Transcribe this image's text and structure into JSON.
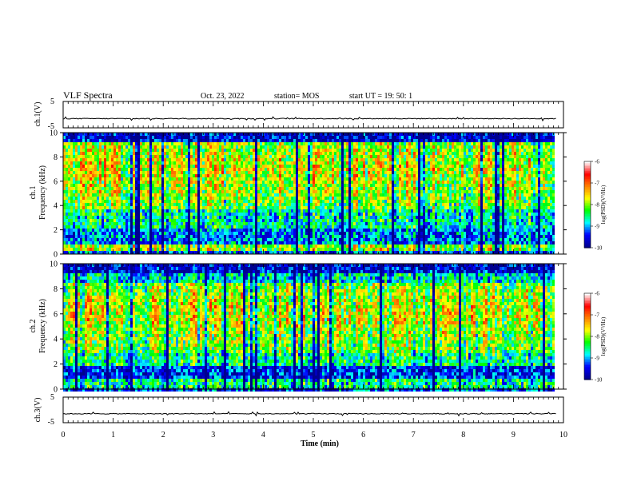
{
  "header": {
    "title": "VLF Spectra",
    "date": "Oct. 23, 2022",
    "station": "station= MOS",
    "start": "start UT =  19: 50: 1"
  },
  "chart_data": [
    {
      "type": "line",
      "panel": "ch1-waveform",
      "ylabel": "ch.1(V)",
      "ylim": [
        -5,
        5
      ],
      "yticks": [
        "5",
        "-5"
      ],
      "baseline": -1.5
    },
    {
      "type": "heatmap",
      "panel": "ch1-spectrogram",
      "ylabel": "ch.1\nFrequency (kHz)",
      "ylim": [
        0,
        10
      ],
      "yticks": [
        "0",
        "2",
        "4",
        "6",
        "8",
        "10"
      ],
      "colorbar": {
        "label": "log(PSD)(V²/Hz)",
        "ticks": [
          "-6",
          "-7",
          "-8",
          "-9",
          "-10"
        ],
        "range": [
          -10,
          -6
        ],
        "colors": [
          "#00008f",
          "#0000ff",
          "#00ffff",
          "#00ff00",
          "#ffff00",
          "#ff8000",
          "#ff0000",
          "#ffffff"
        ]
      }
    },
    {
      "type": "heatmap",
      "panel": "ch2-spectrogram",
      "ylabel": "ch.2\nFrequency (kHz)",
      "ylim": [
        0,
        10
      ],
      "yticks": [
        "0",
        "2",
        "4",
        "6",
        "8",
        "10"
      ],
      "colorbar": {
        "label": "log(PSD)(V²/Hz)",
        "ticks": [
          "-6",
          "-7",
          "-8",
          "-9",
          "-10"
        ],
        "range": [
          -10,
          -6
        ],
        "colors": [
          "#00008f",
          "#0000ff",
          "#00ffff",
          "#00ff00",
          "#ffff00",
          "#ff8000",
          "#ff0000",
          "#ffffff"
        ]
      }
    },
    {
      "type": "line",
      "panel": "ch3-waveform",
      "ylabel": "ch.3(V)",
      "ylim": [
        -5,
        5
      ],
      "yticks": [
        "5",
        "-5"
      ],
      "baseline": -1.5
    }
  ],
  "xaxis": {
    "label": "Time (min)",
    "xlim": [
      0,
      10
    ],
    "ticks": [
      "0",
      "1",
      "2",
      "3",
      "4",
      "5",
      "6",
      "7",
      "8",
      "9",
      "10"
    ],
    "data_end": 9.85
  }
}
